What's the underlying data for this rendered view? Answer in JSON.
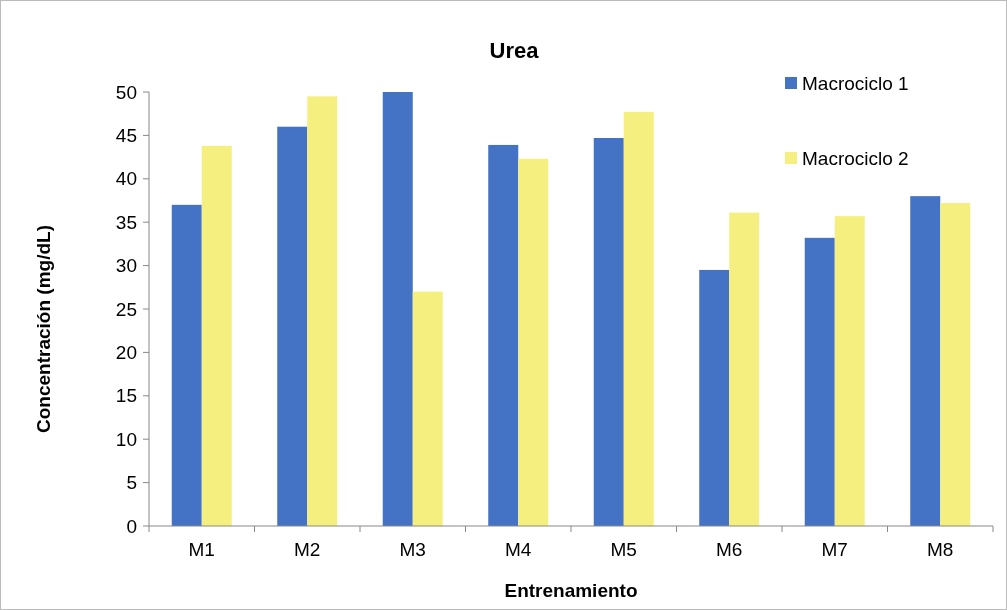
{
  "chart_data": {
    "type": "bar",
    "title": "Urea",
    "xlabel": "Entrenamiento",
    "ylabel": "Concentración (mg/dL)",
    "categories": [
      "M1",
      "M2",
      "M3",
      "M4",
      "M5",
      "M6",
      "M7",
      "M8"
    ],
    "series": [
      {
        "name": "Macrociclo 1",
        "color": "#4472c4",
        "values": [
          37,
          46,
          50,
          43.9,
          44.7,
          29.5,
          33.2,
          38
        ]
      },
      {
        "name": "Macrociclo 2",
        "color": "#f5ef7f",
        "values": [
          43.8,
          49.5,
          27,
          42.3,
          47.7,
          36.1,
          35.7,
          37.2
        ]
      }
    ],
    "ylim": [
      0,
      50
    ],
    "yticks": [
      0,
      5,
      10,
      15,
      20,
      25,
      30,
      35,
      40,
      45,
      50
    ],
    "grid": false,
    "legend": "top right"
  }
}
